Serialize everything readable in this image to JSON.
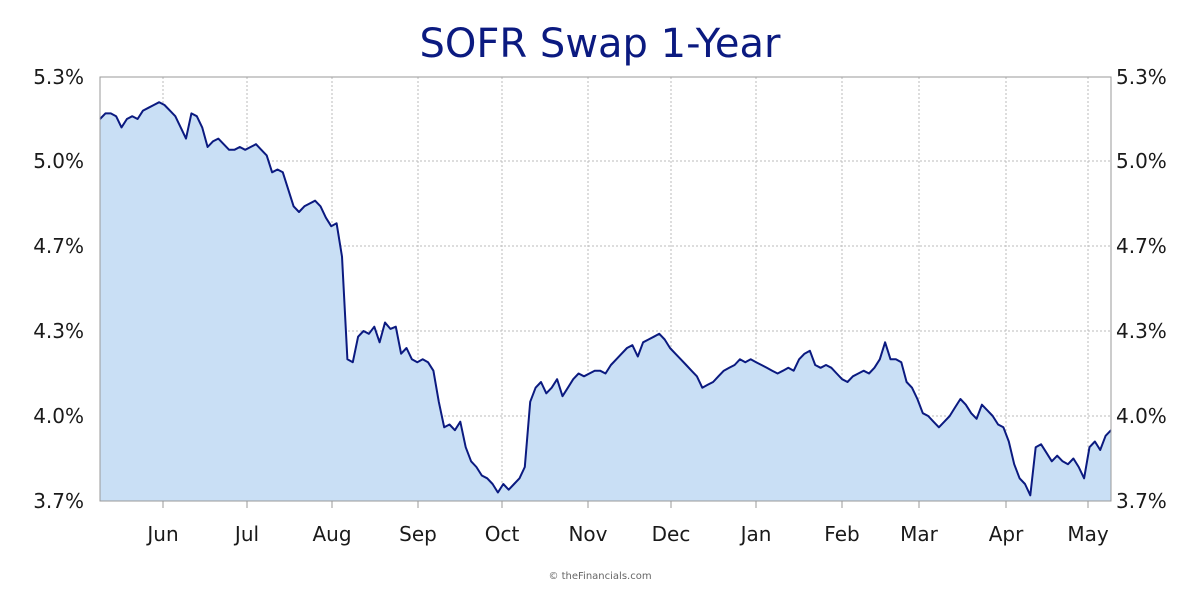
{
  "chart_data": {
    "type": "area",
    "title": "SOFR Swap 1-Year",
    "credit": "© theFinancials.com",
    "xlabel": "",
    "ylabel": "",
    "ylim": [
      3.7,
      5.3
    ],
    "y_ticks": [
      3.7,
      4.0,
      4.3,
      4.7,
      5.0,
      5.3
    ],
    "y_tick_labels": [
      "3.7%",
      "4.0%",
      "4.3%",
      "4.7%",
      "5.0%",
      "5.3%"
    ],
    "x_ticks": [
      "Jun",
      "Jul",
      "Aug",
      "Sep",
      "Oct",
      "Nov",
      "Dec",
      "Jan",
      "Feb",
      "Mar",
      "Apr",
      "May"
    ],
    "grid": true,
    "legend": "none",
    "colors": {
      "line": "#0b1a80",
      "fill": "#c9dff5",
      "grid": "#bbbbbb",
      "axis": "#999999",
      "title": "#0b1a80"
    },
    "series": [
      {
        "values": [
          5.15,
          5.17,
          5.17,
          5.16,
          5.12,
          5.15,
          5.16,
          5.15,
          5.18,
          5.19,
          5.2,
          5.21,
          5.2,
          5.18,
          5.16,
          5.12,
          5.08,
          5.17,
          5.16,
          5.12,
          5.05,
          5.07,
          5.08,
          5.06,
          5.04,
          5.04,
          5.05,
          5.04,
          5.05,
          5.06,
          5.04,
          5.02,
          4.96,
          4.97,
          4.96,
          4.9,
          4.84,
          4.82,
          4.84,
          4.85,
          4.86,
          4.84,
          4.8,
          4.77,
          4.78,
          4.65,
          4.2,
          4.19,
          4.28,
          4.3,
          4.29,
          4.32,
          4.26,
          4.34,
          4.31,
          4.32,
          4.22,
          4.24,
          4.2,
          4.19,
          4.2,
          4.19,
          4.16,
          4.05,
          3.96,
          3.97,
          3.95,
          3.98,
          3.89,
          3.84,
          3.82,
          3.79,
          3.78,
          3.76,
          3.73,
          3.76,
          3.74,
          3.76,
          3.78,
          3.82,
          4.05,
          4.1,
          4.12,
          4.08,
          4.1,
          4.13,
          4.07,
          4.1,
          4.13,
          4.15,
          4.14,
          4.15,
          4.16,
          4.16,
          4.15,
          4.18,
          4.2,
          4.22,
          4.24,
          4.25,
          4.21,
          4.26,
          4.27,
          4.28,
          4.29,
          4.27,
          4.24,
          4.22,
          4.2,
          4.18,
          4.16,
          4.14,
          4.1,
          4.11,
          4.12,
          4.14,
          4.16,
          4.17,
          4.18,
          4.2,
          4.19,
          4.2,
          4.19,
          4.18,
          4.17,
          4.16,
          4.15,
          4.16,
          4.17,
          4.16,
          4.2,
          4.22,
          4.23,
          4.18,
          4.17,
          4.18,
          4.17,
          4.15,
          4.13,
          4.12,
          4.14,
          4.15,
          4.16,
          4.15,
          4.17,
          4.2,
          4.26,
          4.2,
          4.2,
          4.19,
          4.12,
          4.1,
          4.06,
          4.01,
          4.0,
          3.98,
          3.96,
          3.98,
          4.0,
          4.03,
          4.06,
          4.04,
          4.01,
          3.99,
          4.04,
          4.02,
          4.0,
          3.97,
          3.96,
          3.91,
          3.83,
          3.78,
          3.76,
          3.72,
          3.89,
          3.9,
          3.87,
          3.84,
          3.86,
          3.84,
          3.83,
          3.85,
          3.82,
          3.78,
          3.89,
          3.91,
          3.88,
          3.93,
          3.95
        ]
      }
    ]
  }
}
